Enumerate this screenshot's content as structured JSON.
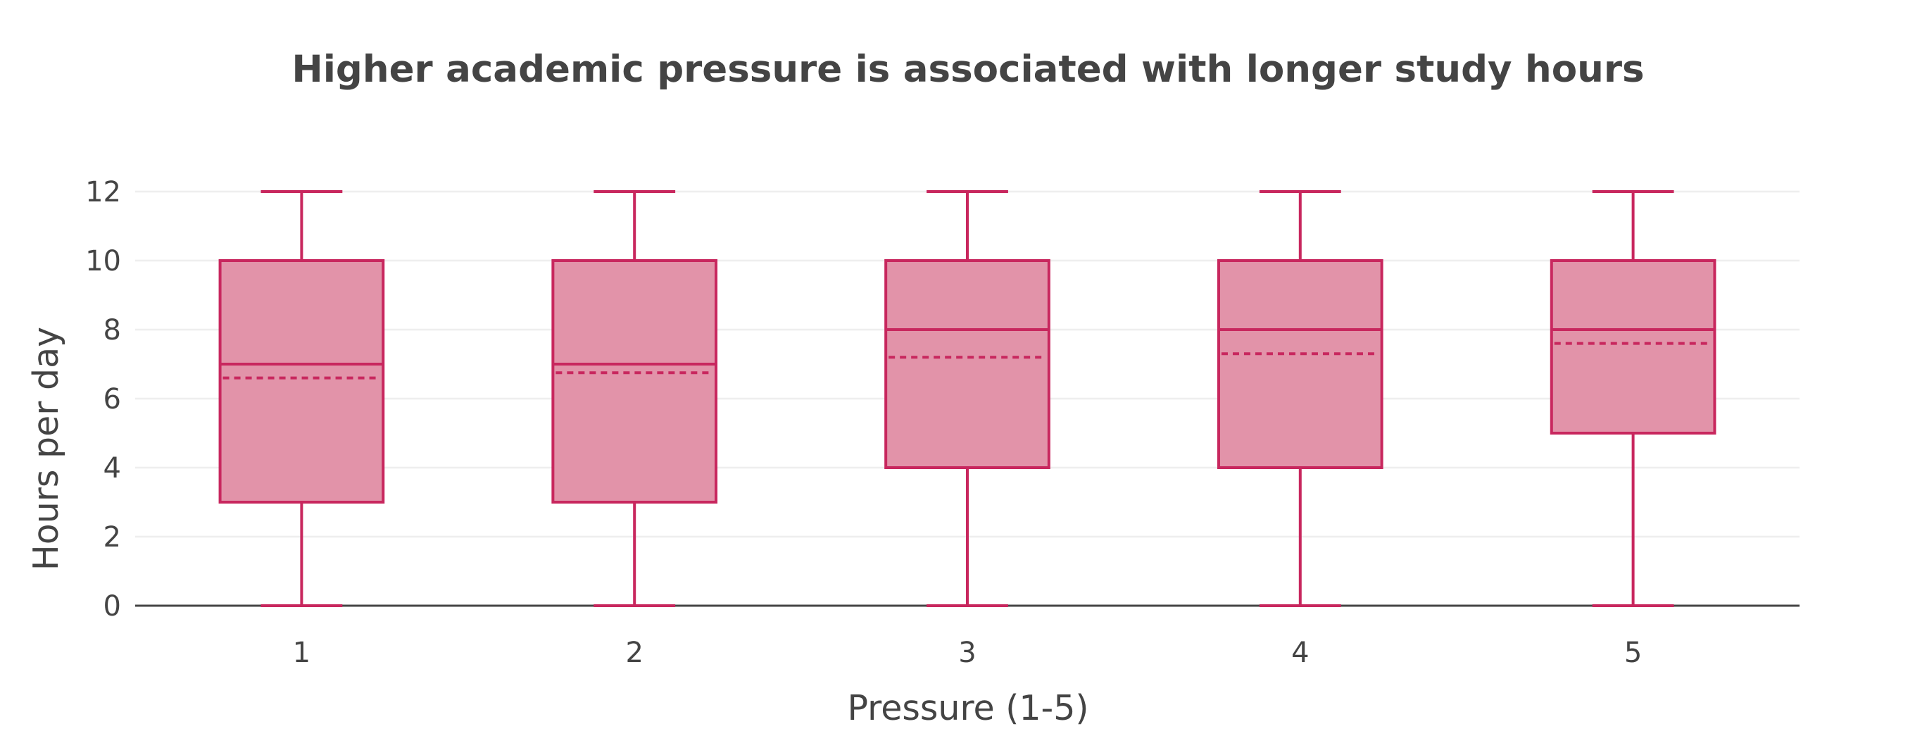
{
  "chart_data": {
    "type": "box",
    "title": "Higher academic pressure is associated with longer study hours",
    "xlabel": "Pressure (1-5)",
    "ylabel": "Hours per day",
    "ylim": [
      0,
      12
    ],
    "y_ticks": [
      0,
      2,
      4,
      6,
      8,
      10,
      12
    ],
    "grid": true,
    "categories": [
      "1",
      "2",
      "3",
      "4",
      "5"
    ],
    "boxes": [
      {
        "category": "1",
        "min": 0,
        "q1": 3,
        "median": 7,
        "q3": 10,
        "max": 12,
        "mean": 6.6
      },
      {
        "category": "2",
        "min": 0,
        "q1": 3,
        "median": 7,
        "q3": 10,
        "max": 12,
        "mean": 6.75
      },
      {
        "category": "3",
        "min": 0,
        "q1": 4,
        "median": 8,
        "q3": 10,
        "max": 12,
        "mean": 7.2
      },
      {
        "category": "4",
        "min": 0,
        "q1": 4,
        "median": 8,
        "q3": 10,
        "max": 12,
        "mean": 7.3
      },
      {
        "category": "5",
        "min": 0,
        "q1": 5,
        "median": 8,
        "q3": 10,
        "max": 12,
        "mean": 7.6
      }
    ],
    "colors": {
      "box_fill": "#e293a9",
      "box_line": "#c8275e",
      "text": "#444444",
      "grid": "#eeeeee"
    }
  }
}
